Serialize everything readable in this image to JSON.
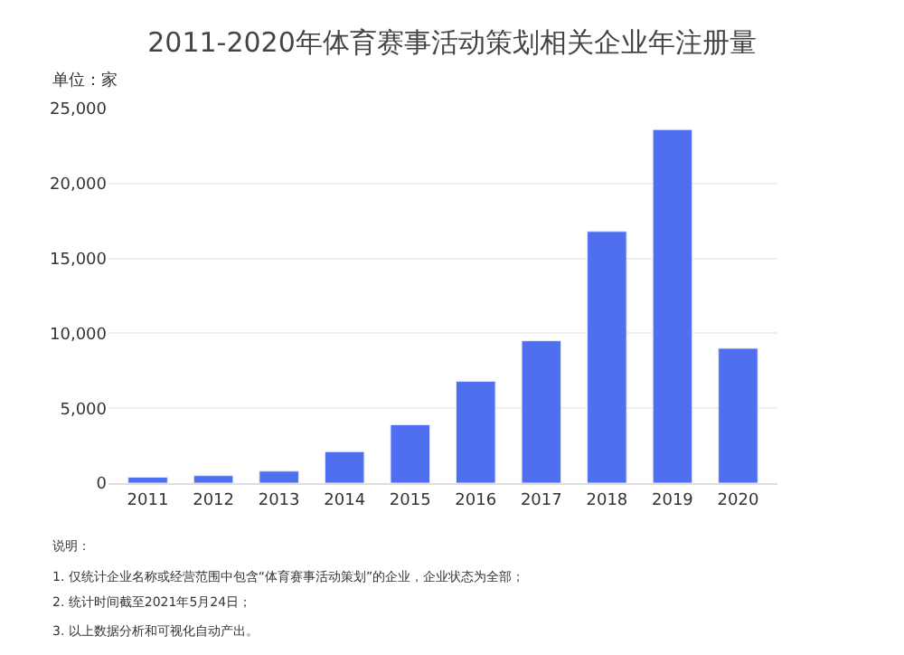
{
  "chart_data": {
    "type": "bar",
    "title": "2011-2020年体育赛事活动策划相关企业年注册量",
    "ylabel": "单位：家",
    "categories": [
      "2011",
      "2012",
      "2013",
      "2014",
      "2015",
      "2016",
      "2017",
      "2018",
      "2019",
      "2020"
    ],
    "values": [
      400,
      500,
      800,
      2100,
      3900,
      6800,
      9500,
      16800,
      23600,
      9000
    ],
    "color": "#4f6ef0",
    "ylim": [
      0,
      25000
    ],
    "yticks": [
      0,
      {
        "value": 5000,
        "label": "5,000"
      },
      {
        "value": 10000,
        "label": "10,000"
      },
      {
        "value": 15000,
        "label": "15,000"
      },
      {
        "value": 20000,
        "label": "20,000"
      },
      {
        "value": 25000,
        "label": "25,000"
      }
    ],
    "grid": "y",
    "annotations": [
      "说明：",
      "1. 仅统计企业名称或经营范围中包含“体育赛事活动策划”的企业，企业状态为全部；",
      "2. 统计时间截至2021年5月24日；",
      "3. 以上数据分析和可视化自动产出。"
    ]
  }
}
